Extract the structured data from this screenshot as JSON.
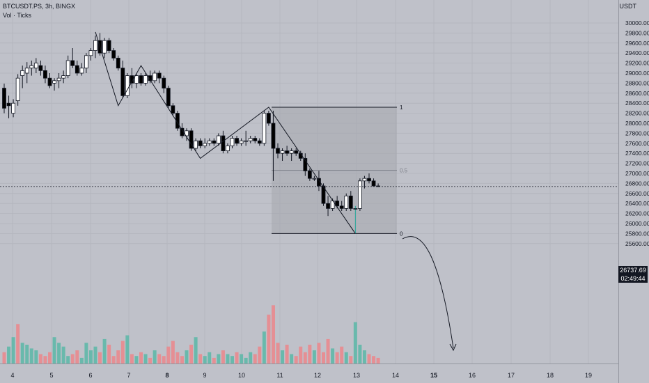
{
  "legend": {
    "symbol_line": "BTCUSDT.PS, 3h, BINGX",
    "volume_line": "Vol · Ticks"
  },
  "axis": {
    "unit": "USDT"
  },
  "price_tag": {
    "value": "26737.69",
    "countdown": "02:49:44"
  },
  "fib_levels": [
    {
      "label": "1",
      "price": 28320
    },
    {
      "label": "0.5",
      "price": 27060
    },
    {
      "label": "0",
      "price": 25800
    }
  ],
  "colors": {
    "background": "#bfc1c9",
    "candle_up": "#ffffff",
    "candle_down": "#000000",
    "volume_up": "#5fb8a8",
    "volume_down": "#e98a8e",
    "highlight_candle": "#26a69a",
    "fib_box": "#a5a7ad"
  },
  "chart_data": {
    "type": "candlestick",
    "y_range": [
      25420,
      30260
    ],
    "y_ticks": [
      30000,
      29800,
      29600,
      29400,
      29200,
      29000,
      28800,
      28600,
      28400,
      28200,
      28000,
      27800,
      27600,
      27400,
      27200,
      27000,
      26800,
      26600,
      26400,
      26200,
      26000,
      25800,
      25600
    ],
    "x_ticks": [
      "4",
      "5",
      "6",
      "7",
      "8",
      "9",
      "10",
      "11",
      "12",
      "13",
      "14",
      "15",
      "16",
      "17",
      "18",
      "19"
    ],
    "x_ticks_bold": [
      "8",
      "15"
    ],
    "candles": [
      [
        28700,
        28790,
        28200,
        28300
      ],
      [
        28400,
        28550,
        28100,
        28350
      ],
      [
        28200,
        28480,
        28120,
        28400
      ],
      [
        28450,
        28980,
        28350,
        28900
      ],
      [
        28950,
        29150,
        28700,
        29050
      ],
      [
        29000,
        29220,
        28800,
        29100
      ],
      [
        29100,
        29250,
        28950,
        29150
      ],
      [
        29100,
        29300,
        29000,
        29200
      ],
      [
        29150,
        29250,
        28950,
        29050
      ],
      [
        29050,
        29150,
        28800,
        28900
      ],
      [
        28900,
        29000,
        28700,
        28750
      ],
      [
        28800,
        28900,
        28650,
        28850
      ],
      [
        28850,
        29000,
        28700,
        28900
      ],
      [
        28900,
        29050,
        28800,
        28950
      ],
      [
        28950,
        29350,
        28900,
        29250
      ],
      [
        29250,
        29500,
        29100,
        29150
      ],
      [
        29150,
        29250,
        28950,
        29000
      ],
      [
        29000,
        29200,
        28950,
        29100
      ],
      [
        29100,
        29400,
        29000,
        29350
      ],
      [
        29350,
        29500,
        29250,
        29450
      ],
      [
        29450,
        29750,
        29300,
        29650
      ],
      [
        29650,
        29800,
        29350,
        29400
      ],
      [
        29400,
        29700,
        29300,
        29650
      ],
      [
        29650,
        29700,
        29400,
        29450
      ],
      [
        29450,
        29500,
        29250,
        29300
      ],
      [
        29300,
        29350,
        29050,
        29100
      ],
      [
        29100,
        29250,
        28500,
        28550
      ],
      [
        28550,
        29000,
        28500,
        28950
      ],
      [
        28950,
        29100,
        28700,
        28800
      ],
      [
        28800,
        29000,
        28700,
        28950
      ],
      [
        28950,
        29000,
        28750,
        28800
      ],
      [
        28800,
        29000,
        28750,
        28950
      ],
      [
        28950,
        29050,
        28800,
        28850
      ],
      [
        28850,
        29050,
        28800,
        29000
      ],
      [
        29000,
        29050,
        28800,
        28900
      ],
      [
        28900,
        28950,
        28600,
        28700
      ],
      [
        28700,
        28750,
        28300,
        28350
      ],
      [
        28350,
        28400,
        28150,
        28200
      ],
      [
        28200,
        28250,
        27850,
        27900
      ],
      [
        27900,
        28000,
        27700,
        27750
      ],
      [
        27750,
        27900,
        27650,
        27850
      ],
      [
        27850,
        27900,
        27450,
        27500
      ],
      [
        27500,
        27700,
        27450,
        27650
      ],
      [
        27650,
        27700,
        27500,
        27550
      ],
      [
        27550,
        27700,
        27500,
        27600
      ],
      [
        27600,
        27700,
        27550,
        27650
      ],
      [
        27650,
        27700,
        27550,
        27600
      ],
      [
        27600,
        27800,
        27550,
        27750
      ],
      [
        27750,
        27850,
        27400,
        27450
      ],
      [
        27450,
        27600,
        27400,
        27550
      ],
      [
        27550,
        27750,
        27500,
        27700
      ],
      [
        27700,
        27750,
        27550,
        27600
      ],
      [
        27600,
        27700,
        27550,
        27650
      ],
      [
        27650,
        27850,
        27550,
        27650
      ],
      [
        27650,
        27750,
        27600,
        27700
      ],
      [
        27700,
        27750,
        27600,
        27650
      ],
      [
        27650,
        27700,
        27550,
        27600
      ],
      [
        27600,
        28250,
        27550,
        28200
      ],
      [
        28200,
        28250,
        27950,
        28000
      ],
      [
        28000,
        28250,
        26850,
        27500
      ],
      [
        27500,
        27600,
        27300,
        27400
      ],
      [
        27400,
        27500,
        27250,
        27450
      ],
      [
        27450,
        27550,
        27350,
        27400
      ],
      [
        27400,
        27500,
        27250,
        27450
      ],
      [
        27450,
        27500,
        27350,
        27400
      ],
      [
        27400,
        27450,
        27250,
        27300
      ],
      [
        27300,
        27400,
        26950,
        27050
      ],
      [
        27050,
        27100,
        26850,
        26900
      ],
      [
        26900,
        26950,
        26850,
        26900
      ],
      [
        26900,
        27050,
        26650,
        26750
      ],
      [
        26750,
        26800,
        26350,
        26400
      ],
      [
        26400,
        26550,
        26150,
        26300
      ],
      [
        26300,
        26500,
        26250,
        26450
      ],
      [
        26450,
        26550,
        26300,
        26350
      ],
      [
        26350,
        26450,
        26250,
        26300
      ],
      [
        26300,
        26600,
        26250,
        26550
      ],
      [
        26550,
        26650,
        26250,
        26300
      ],
      [
        26300,
        26350,
        25800,
        26300
      ],
      [
        26300,
        26900,
        26250,
        26850
      ],
      [
        26850,
        26950,
        26700,
        26900
      ],
      [
        26900,
        27000,
        26800,
        26850
      ],
      [
        26850,
        26900,
        26750,
        26750
      ],
      [
        26750,
        26800,
        26730,
        26740
      ]
    ],
    "volumes": [
      12,
      18,
      28,
      42,
      22,
      20,
      16,
      14,
      10,
      8,
      12,
      28,
      22,
      18,
      8,
      10,
      14,
      6,
      22,
      14,
      18,
      12,
      26,
      20,
      8,
      14,
      24,
      30,
      10,
      8,
      12,
      10,
      6,
      14,
      10,
      8,
      18,
      24,
      12,
      8,
      14,
      20,
      28,
      10,
      8,
      12,
      6,
      10,
      14,
      10,
      8,
      12,
      10,
      6,
      12,
      10,
      18,
      34,
      52,
      62,
      22,
      14,
      20,
      10,
      8,
      18,
      12,
      20,
      14,
      22,
      12,
      26,
      16,
      12,
      18,
      12,
      8,
      44,
      20,
      14,
      10,
      8,
      6
    ],
    "volume_down_flags": [
      1,
      0,
      0,
      1,
      0,
      0,
      0,
      0,
      1,
      1,
      1,
      0,
      0,
      0,
      0,
      1,
      1,
      0,
      0,
      0,
      0,
      1,
      0,
      1,
      1,
      1,
      1,
      0,
      1,
      0,
      1,
      0,
      1,
      0,
      1,
      1,
      1,
      1,
      1,
      1,
      0,
      1,
      0,
      1,
      0,
      0,
      1,
      0,
      1,
      0,
      0,
      1,
      0,
      0,
      0,
      1,
      1,
      0,
      1,
      1,
      1,
      0,
      1,
      0,
      1,
      1,
      1,
      1,
      0,
      1,
      1,
      1,
      0,
      1,
      1,
      0,
      1,
      0,
      0,
      0,
      1,
      1,
      1
    ],
    "zigzag_prices": [
      29820,
      28350,
      29150,
      27300,
      28320,
      25800
    ],
    "zigzag_candles": [
      20,
      25,
      30,
      43,
      58,
      77
    ]
  }
}
